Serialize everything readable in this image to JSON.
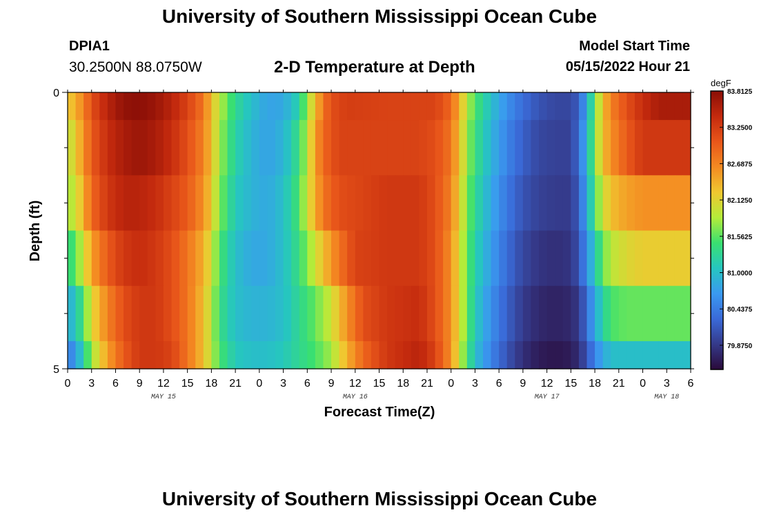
{
  "header": {
    "title": "University of Southern Mississippi Ocean Cube",
    "station": "DPIA1",
    "coords": "30.2500N  88.0750W",
    "subtitle": "2-D Temperature at Depth",
    "start_label": "Model Start Time",
    "start_value": "05/15/2022 Hour 21"
  },
  "footer": {
    "title": "University of Southern Mississippi Ocean Cube"
  },
  "chart_data": {
    "type": "heatmap",
    "xlabel": "Forecast Time(Z)",
    "ylabel": "Depth (ft)",
    "x_tick_labels": [
      "0",
      "3",
      "6",
      "9",
      "12",
      "15",
      "18",
      "21",
      "0",
      "3",
      "6",
      "9",
      "12",
      "15",
      "18",
      "21",
      "0",
      "3",
      "6",
      "9",
      "12",
      "15",
      "18",
      "21",
      "0",
      "3",
      "6"
    ],
    "x_hours": [
      0,
      78
    ],
    "day_labels": [
      {
        "label": "MAY 15",
        "hour": 12
      },
      {
        "label": "MAY 16",
        "hour": 36
      },
      {
        "label": "MAY 17",
        "hour": 60
      },
      {
        "label": "MAY 18",
        "hour": 75
      }
    ],
    "y_tick_labels": [
      "0",
      "5"
    ],
    "ylim": [
      0,
      5
    ],
    "depth_rows": 5,
    "colorbar": {
      "unit": "degF",
      "min": 79.5,
      "max": 83.8125,
      "labels": [
        "83.8125",
        "83.2500",
        "82.6875",
        "82.1250",
        "81.5625",
        "81.0000",
        "80.4375",
        "79.8750"
      ],
      "colors": [
        "#2a0a3a",
        "#353a8a",
        "#3a6ad8",
        "#3a9af0",
        "#26c6c0",
        "#3ae070",
        "#b4ec3a",
        "#f0c830",
        "#f48a22",
        "#e8561a",
        "#c42a0e",
        "#8a0e06"
      ]
    },
    "rows": [
      {
        "depth_from": 0.0,
        "depth_to": 0.5,
        "keyframes": [
          [
            0,
            82.2
          ],
          [
            1,
            82.4
          ],
          [
            2,
            82.7
          ],
          [
            3,
            83.1
          ],
          [
            5,
            83.5
          ],
          [
            7,
            83.75
          ],
          [
            9,
            83.8
          ],
          [
            11,
            83.7
          ],
          [
            13,
            83.5
          ],
          [
            15,
            83.2
          ],
          [
            17,
            82.8
          ],
          [
            18,
            82.3
          ],
          [
            19,
            81.9
          ],
          [
            21,
            81.3
          ],
          [
            23,
            81.0
          ],
          [
            25,
            80.75
          ],
          [
            27,
            80.8
          ],
          [
            29,
            81.2
          ],
          [
            30,
            81.8
          ],
          [
            31,
            82.3
          ],
          [
            32,
            82.8
          ],
          [
            33,
            83.1
          ],
          [
            35,
            83.25
          ],
          [
            40,
            83.2
          ],
          [
            44,
            83.2
          ],
          [
            46,
            83.2
          ],
          [
            48,
            82.9
          ],
          [
            49,
            82.4
          ],
          [
            50,
            81.9
          ],
          [
            51,
            81.5
          ],
          [
            53,
            81.0
          ],
          [
            55,
            80.6
          ],
          [
            57,
            80.3
          ],
          [
            59,
            80.1
          ],
          [
            61,
            80.0
          ],
          [
            63,
            80.0
          ],
          [
            64,
            80.2
          ],
          [
            65,
            80.8
          ],
          [
            66,
            81.6
          ],
          [
            67,
            82.3
          ],
          [
            68,
            82.7
          ],
          [
            70,
            83.1
          ],
          [
            72,
            83.4
          ],
          [
            74,
            83.6
          ]
        ]
      },
      {
        "depth_from": 0.5,
        "depth_to": 1.5,
        "keyframes": [
          [
            0,
            81.9
          ],
          [
            1,
            82.2
          ],
          [
            2,
            82.6
          ],
          [
            3,
            83.0
          ],
          [
            5,
            83.4
          ],
          [
            7,
            83.6
          ],
          [
            9,
            83.7
          ],
          [
            11,
            83.6
          ],
          [
            13,
            83.4
          ],
          [
            15,
            83.1
          ],
          [
            17,
            82.7
          ],
          [
            18,
            82.3
          ],
          [
            19,
            81.8
          ],
          [
            21,
            81.2
          ],
          [
            23,
            80.9
          ],
          [
            25,
            80.75
          ],
          [
            27,
            80.9
          ],
          [
            29,
            81.4
          ],
          [
            30,
            81.9
          ],
          [
            31,
            82.5
          ],
          [
            32,
            82.9
          ],
          [
            34,
            83.2
          ],
          [
            40,
            83.2
          ],
          [
            44,
            83.2
          ],
          [
            46,
            83.1
          ],
          [
            48,
            82.8
          ],
          [
            49,
            82.3
          ],
          [
            50,
            81.8
          ],
          [
            51,
            81.4
          ],
          [
            53,
            80.9
          ],
          [
            55,
            80.5
          ],
          [
            57,
            80.2
          ],
          [
            59,
            80.0
          ],
          [
            61,
            79.95
          ],
          [
            63,
            79.95
          ],
          [
            64,
            80.3
          ],
          [
            65,
            80.9
          ],
          [
            66,
            81.7
          ],
          [
            67,
            82.3
          ],
          [
            68,
            82.6
          ],
          [
            70,
            83.0
          ],
          [
            72,
            83.3
          ],
          [
            74,
            83.3
          ]
        ]
      },
      {
        "depth_from": 1.5,
        "depth_to": 2.5,
        "keyframes": [
          [
            0,
            81.8
          ],
          [
            1,
            82.0
          ],
          [
            2,
            82.4
          ],
          [
            3,
            82.9
          ],
          [
            5,
            83.3
          ],
          [
            7,
            83.5
          ],
          [
            9,
            83.5
          ],
          [
            11,
            83.4
          ],
          [
            13,
            83.2
          ],
          [
            15,
            83.0
          ],
          [
            17,
            82.6
          ],
          [
            18,
            82.2
          ],
          [
            19,
            81.7
          ],
          [
            21,
            81.1
          ],
          [
            23,
            80.9
          ],
          [
            25,
            80.8
          ],
          [
            27,
            81.0
          ],
          [
            29,
            81.5
          ],
          [
            30,
            82.0
          ],
          [
            31,
            82.4
          ],
          [
            32,
            82.8
          ],
          [
            34,
            83.1
          ],
          [
            40,
            83.3
          ],
          [
            44,
            83.3
          ],
          [
            46,
            83.1
          ],
          [
            48,
            82.7
          ],
          [
            49,
            82.2
          ],
          [
            50,
            81.7
          ],
          [
            51,
            81.3
          ],
          [
            53,
            80.8
          ],
          [
            55,
            80.4
          ],
          [
            57,
            80.1
          ],
          [
            59,
            79.95
          ],
          [
            61,
            79.9
          ],
          [
            63,
            79.9
          ],
          [
            64,
            80.2
          ],
          [
            65,
            80.8
          ],
          [
            66,
            81.5
          ],
          [
            67,
            82.0
          ],
          [
            68,
            82.3
          ],
          [
            70,
            82.5
          ],
          [
            72,
            82.6
          ],
          [
            74,
            82.6
          ]
        ]
      },
      {
        "depth_from": 2.5,
        "depth_to": 3.5,
        "keyframes": [
          [
            0,
            81.3
          ],
          [
            1,
            81.6
          ],
          [
            2,
            82.0
          ],
          [
            3,
            82.5
          ],
          [
            5,
            83.0
          ],
          [
            7,
            83.3
          ],
          [
            9,
            83.4
          ],
          [
            11,
            83.3
          ],
          [
            13,
            83.1
          ],
          [
            15,
            82.8
          ],
          [
            17,
            82.4
          ],
          [
            18,
            82.0
          ],
          [
            19,
            81.5
          ],
          [
            21,
            81.0
          ],
          [
            23,
            80.8
          ],
          [
            25,
            80.8
          ],
          [
            27,
            81.0
          ],
          [
            29,
            81.4
          ],
          [
            30,
            81.7
          ],
          [
            31,
            82.0
          ],
          [
            32,
            82.3
          ],
          [
            34,
            82.8
          ],
          [
            36,
            83.2
          ],
          [
            40,
            83.3
          ],
          [
            44,
            83.3
          ],
          [
            46,
            83.1
          ],
          [
            48,
            82.6
          ],
          [
            49,
            82.1
          ],
          [
            50,
            81.6
          ],
          [
            51,
            81.2
          ],
          [
            53,
            80.7
          ],
          [
            55,
            80.3
          ],
          [
            57,
            80.0
          ],
          [
            59,
            79.85
          ],
          [
            61,
            79.8
          ],
          [
            63,
            79.85
          ],
          [
            64,
            80.1
          ],
          [
            65,
            80.6
          ],
          [
            66,
            81.1
          ],
          [
            67,
            81.6
          ],
          [
            68,
            81.9
          ],
          [
            70,
            82.1
          ],
          [
            72,
            82.2
          ],
          [
            74,
            82.2
          ]
        ]
      },
      {
        "depth_from": 3.5,
        "depth_to": 4.5,
        "keyframes": [
          [
            0,
            80.8
          ],
          [
            1,
            81.1
          ],
          [
            2,
            81.5
          ],
          [
            3,
            82.1
          ],
          [
            5,
            82.7
          ],
          [
            7,
            83.1
          ],
          [
            9,
            83.3
          ],
          [
            11,
            83.3
          ],
          [
            13,
            83.1
          ],
          [
            15,
            82.8
          ],
          [
            17,
            82.3
          ],
          [
            18,
            81.9
          ],
          [
            19,
            81.4
          ],
          [
            21,
            81.0
          ],
          [
            23,
            80.9
          ],
          [
            25,
            80.9
          ],
          [
            27,
            81.0
          ],
          [
            29,
            81.3
          ],
          [
            31,
            81.6
          ],
          [
            33,
            82.0
          ],
          [
            35,
            82.6
          ],
          [
            37,
            83.1
          ],
          [
            40,
            83.3
          ],
          [
            44,
            83.4
          ],
          [
            46,
            83.1
          ],
          [
            48,
            82.6
          ],
          [
            49,
            82.1
          ],
          [
            50,
            81.6
          ],
          [
            51,
            81.1
          ],
          [
            53,
            80.6
          ],
          [
            55,
            80.2
          ],
          [
            57,
            79.9
          ],
          [
            59,
            79.75
          ],
          [
            61,
            79.7
          ],
          [
            63,
            79.75
          ],
          [
            64,
            79.9
          ],
          [
            65,
            80.3
          ],
          [
            66,
            80.8
          ],
          [
            67,
            81.2
          ],
          [
            68,
            81.5
          ],
          [
            70,
            81.6
          ],
          [
            72,
            81.6
          ],
          [
            74,
            81.6
          ]
        ]
      },
      {
        "depth_from": 4.5,
        "depth_to": 5.0,
        "keyframes": [
          [
            0,
            80.4
          ],
          [
            1,
            80.7
          ],
          [
            2,
            81.2
          ],
          [
            3,
            81.8
          ],
          [
            5,
            82.5
          ],
          [
            7,
            83.0
          ],
          [
            9,
            83.3
          ],
          [
            11,
            83.3
          ],
          [
            13,
            83.2
          ],
          [
            15,
            82.8
          ],
          [
            17,
            82.3
          ],
          [
            18,
            81.9
          ],
          [
            19,
            81.5
          ],
          [
            21,
            81.1
          ],
          [
            23,
            81.0
          ],
          [
            25,
            81.0
          ],
          [
            27,
            81.1
          ],
          [
            29,
            81.3
          ],
          [
            31,
            81.5
          ],
          [
            33,
            81.8
          ],
          [
            35,
            82.4
          ],
          [
            37,
            82.9
          ],
          [
            40,
            83.3
          ],
          [
            44,
            83.5
          ],
          [
            46,
            83.2
          ],
          [
            48,
            82.6
          ],
          [
            49,
            82.0
          ],
          [
            50,
            81.5
          ],
          [
            51,
            81.0
          ],
          [
            53,
            80.5
          ],
          [
            55,
            80.1
          ],
          [
            57,
            79.8
          ],
          [
            59,
            79.65
          ],
          [
            61,
            79.6
          ],
          [
            63,
            79.65
          ],
          [
            64,
            79.8
          ],
          [
            65,
            80.1
          ],
          [
            66,
            80.5
          ],
          [
            67,
            80.8
          ],
          [
            68,
            81.0
          ],
          [
            70,
            81.0
          ],
          [
            72,
            81.0
          ],
          [
            74,
            81.0
          ]
        ]
      }
    ]
  }
}
